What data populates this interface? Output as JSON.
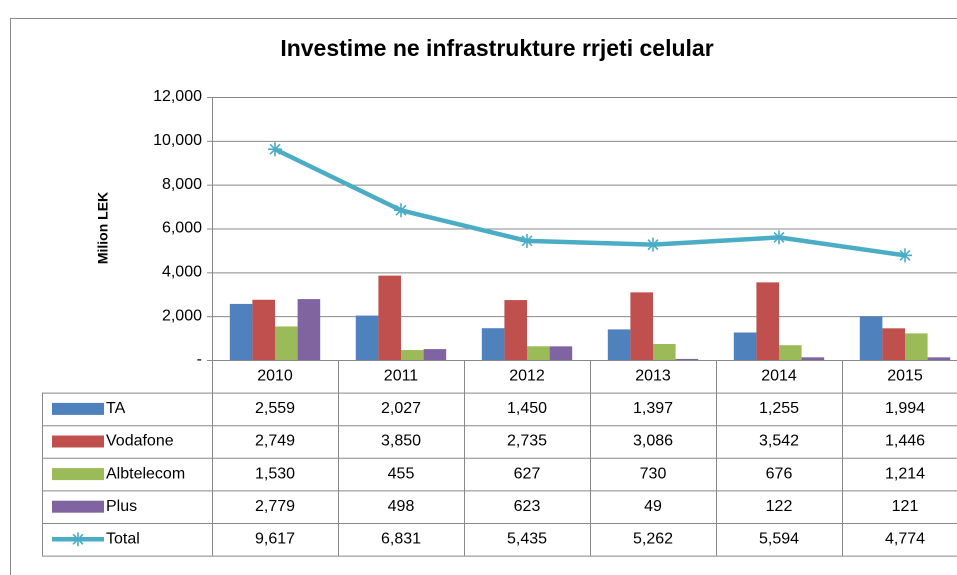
{
  "chart_data": {
    "type": "bar",
    "title": "Investime ne infrastrukture rrjeti celular",
    "y_label": "Milion LEK",
    "categories": [
      "2010",
      "2011",
      "2012",
      "2013",
      "2014",
      "2015"
    ],
    "series": [
      {
        "name": "TA",
        "color": "#4f81bd",
        "type": "bar",
        "values": [
          2559,
          2027,
          1450,
          1397,
          1255,
          1994
        ],
        "value_labels": [
          "2,559",
          "2,027",
          "1,450",
          "1,397",
          "1,255",
          "1,994"
        ]
      },
      {
        "name": "Vodafone",
        "color": "#c0504d",
        "type": "bar",
        "values": [
          2749,
          3850,
          2735,
          3086,
          3542,
          1446
        ],
        "value_labels": [
          "2,749",
          "3,850",
          "2,735",
          "3,086",
          "3,542",
          "1,446"
        ]
      },
      {
        "name": "Albtelecom",
        "color": "#9bbb59",
        "type": "bar",
        "values": [
          1530,
          455,
          627,
          730,
          676,
          1214
        ],
        "value_labels": [
          "1,530",
          "455",
          "627",
          "730",
          "676",
          "1,214"
        ]
      },
      {
        "name": "Plus",
        "color": "#8064a2",
        "type": "bar",
        "values": [
          2779,
          498,
          623,
          49,
          122,
          121
        ],
        "value_labels": [
          "2,779",
          "498",
          "623",
          "49",
          "122",
          "121"
        ]
      },
      {
        "name": "Total",
        "color": "#4bacc6",
        "type": "line",
        "values": [
          9617,
          6831,
          5435,
          5262,
          5594,
          4774
        ],
        "value_labels": [
          "9,617",
          "6,831",
          "5,435",
          "5,262",
          "5,594",
          "4,774"
        ]
      }
    ],
    "ylim": [
      0,
      12000
    ],
    "yticks": [
      {
        "value": 0,
        "label": "-"
      },
      {
        "value": 2000,
        "label": "2,000"
      },
      {
        "value": 4000,
        "label": "4,000"
      },
      {
        "value": 6000,
        "label": "6,000"
      },
      {
        "value": 8000,
        "label": "8,000"
      },
      {
        "value": 10000,
        "label": "10,000"
      },
      {
        "value": 12000,
        "label": "12,000"
      }
    ],
    "grid": true
  }
}
